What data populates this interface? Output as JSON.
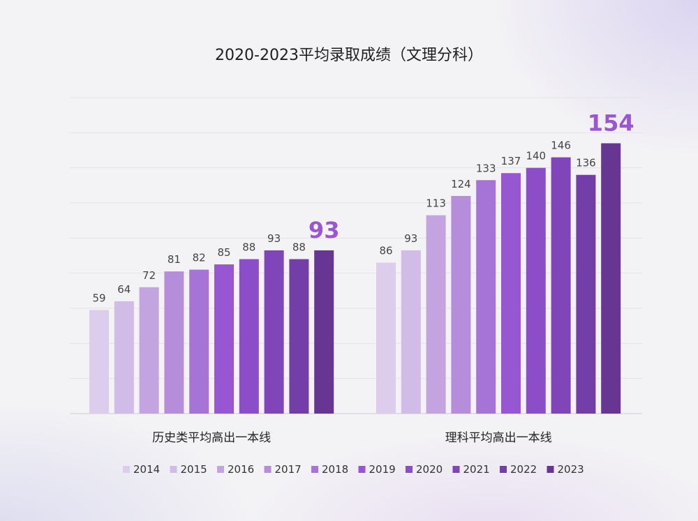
{
  "chart_data": {
    "type": "bar",
    "title": "2020-2023平均录取成绩（文理分科）",
    "categories": [
      "历史类平均高出一本线",
      "理科平均高出一本线"
    ],
    "series": [
      {
        "name": "2014",
        "color": "#dccdec",
        "values": [
          59,
          86
        ]
      },
      {
        "name": "2015",
        "color": "#d1bce8",
        "values": [
          64,
          93
        ]
      },
      {
        "name": "2016",
        "color": "#c3a4e0",
        "values": [
          72,
          113
        ]
      },
      {
        "name": "2017",
        "color": "#b58ddb",
        "values": [
          81,
          124
        ]
      },
      {
        "name": "2018",
        "color": "#a673d6",
        "values": [
          82,
          133
        ]
      },
      {
        "name": "2019",
        "color": "#9757d2",
        "values": [
          85,
          137
        ]
      },
      {
        "name": "2020",
        "color": "#8c4ec8",
        "values": [
          88,
          140
        ]
      },
      {
        "name": "2021",
        "color": "#7f45b9",
        "values": [
          93,
          146
        ]
      },
      {
        "name": "2022",
        "color": "#733ea8",
        "values": [
          88,
          136
        ]
      },
      {
        "name": "2023",
        "color": "#673692",
        "values": [
          93,
          154
        ]
      }
    ],
    "highlight_series": "2023",
    "ylim": [
      0,
      180
    ],
    "grid": true,
    "legend": "bottom"
  }
}
